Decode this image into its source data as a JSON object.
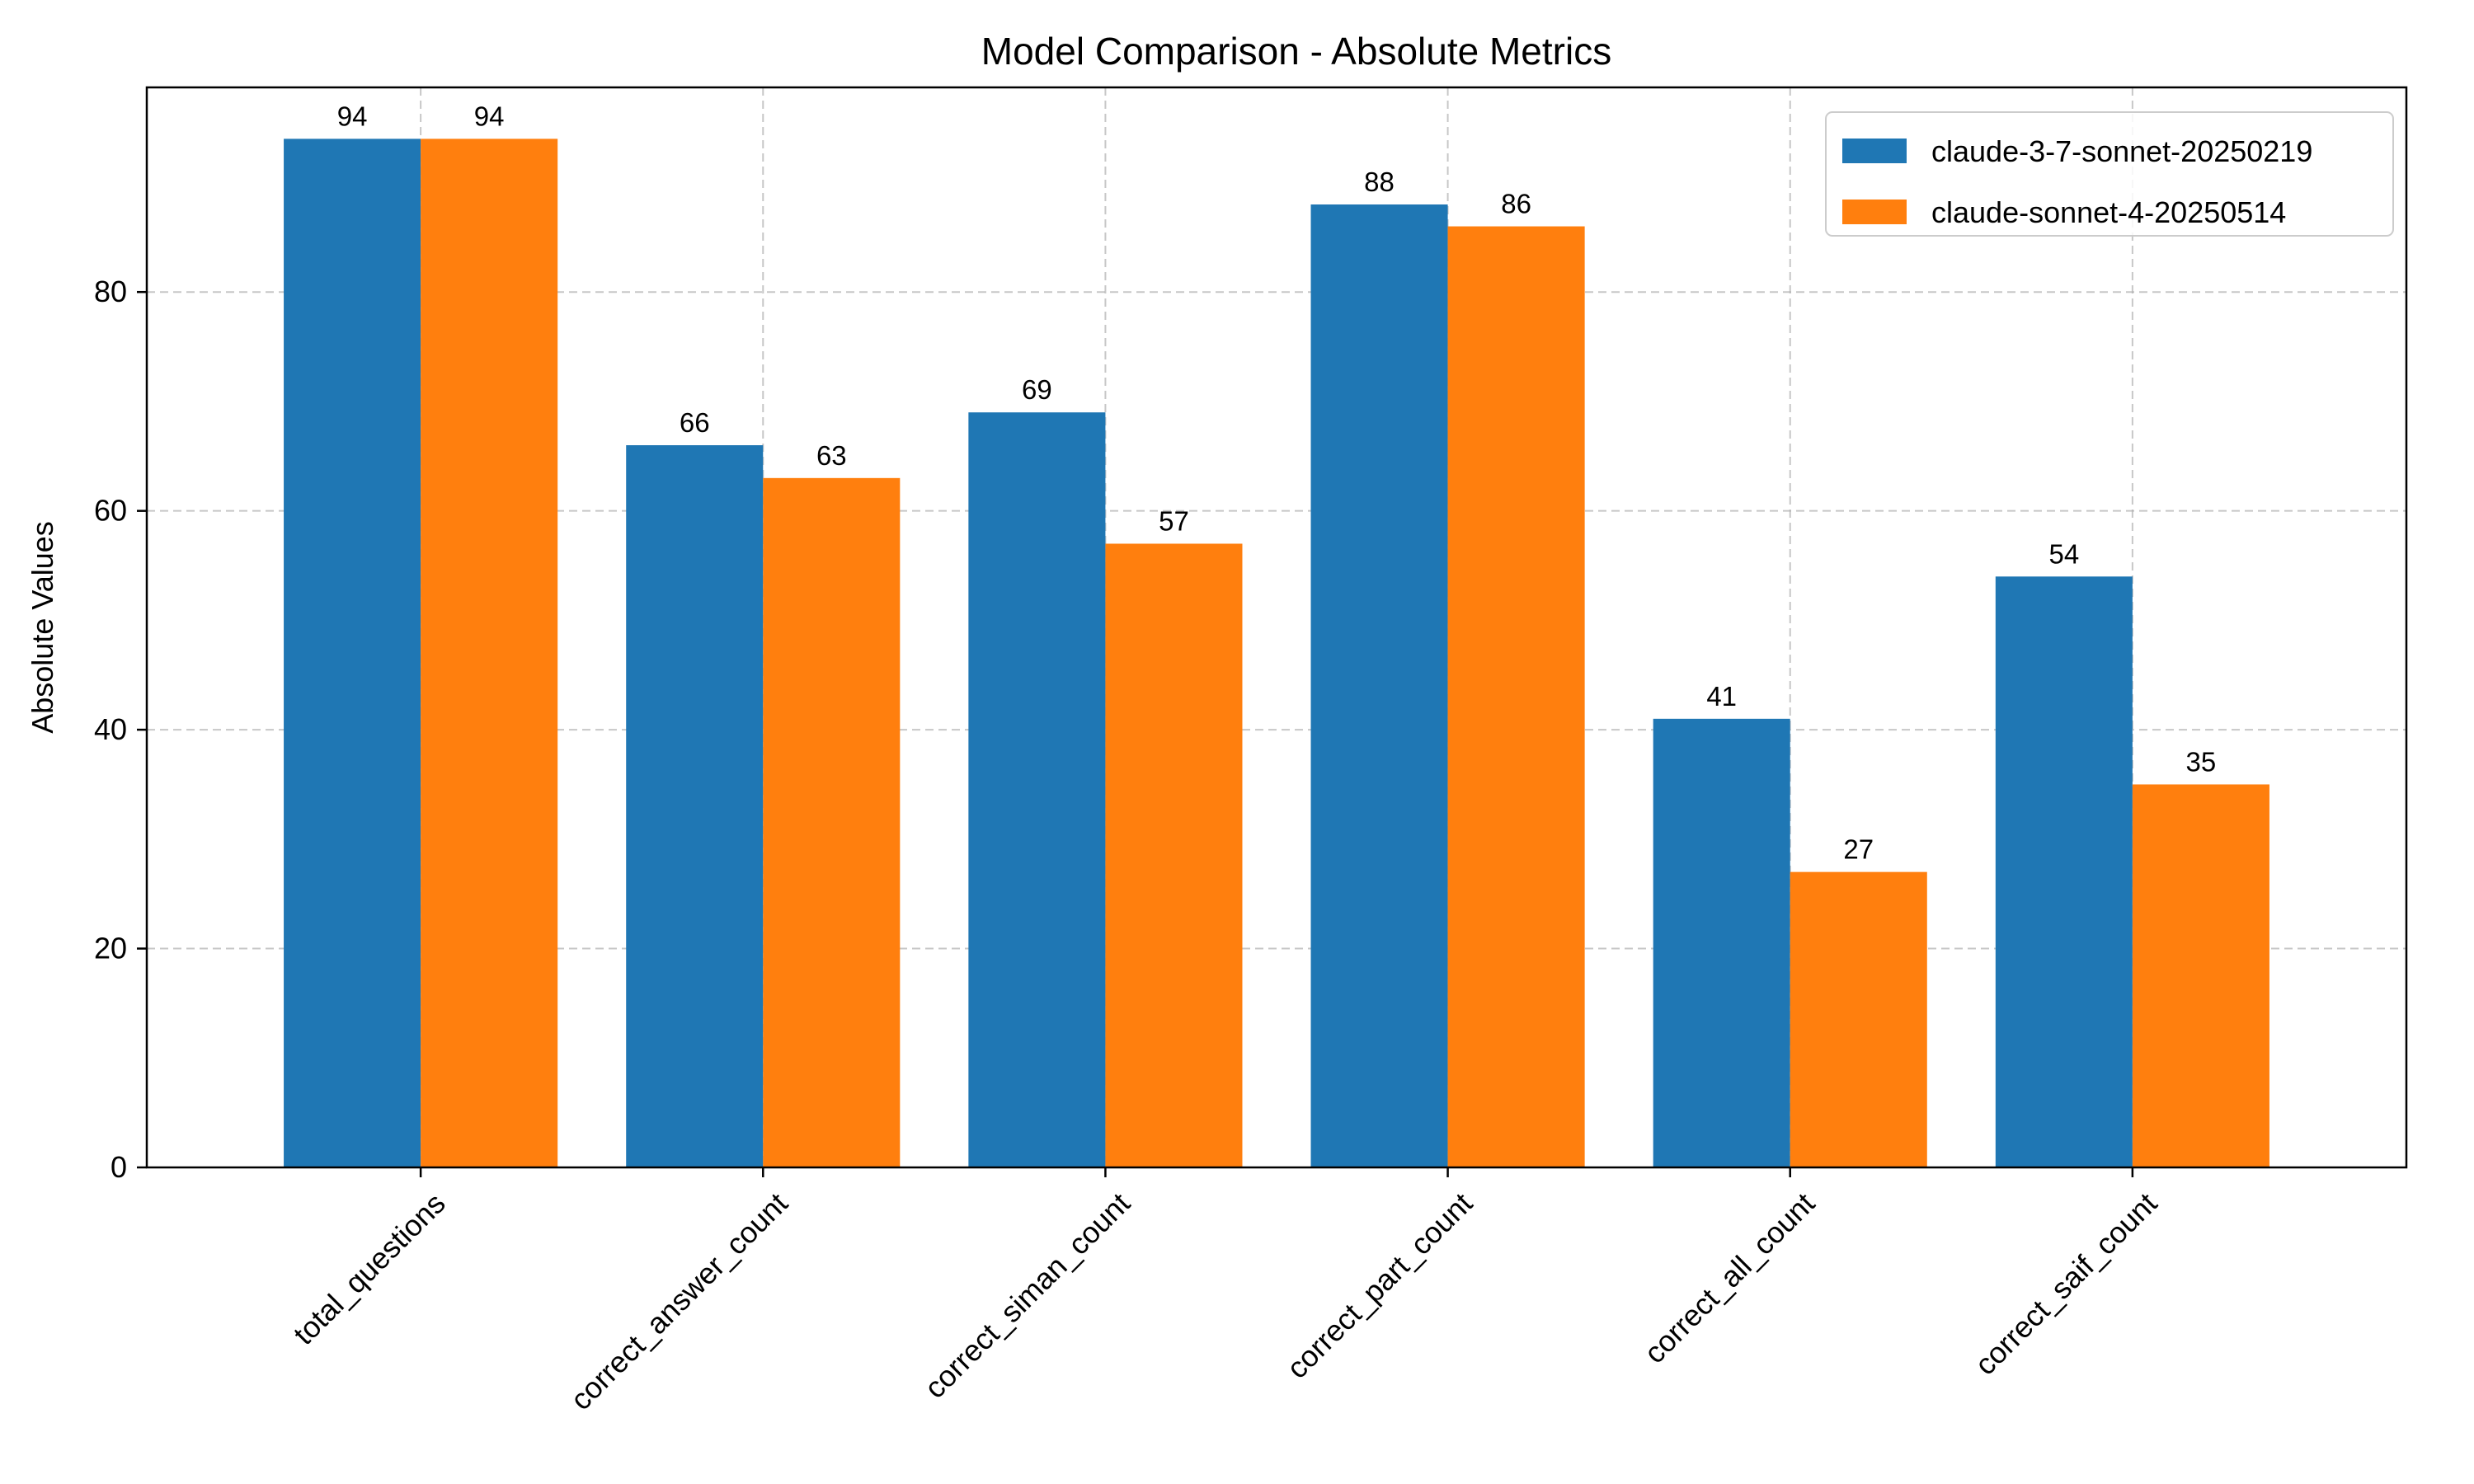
{
  "chart_data": {
    "type": "bar",
    "title": "Model Comparison - Absolute Metrics",
    "xlabel": "",
    "ylabel": "Absolute Values",
    "categories": [
      "total_questions",
      "correct_answer_count",
      "correct_siman_count",
      "correct_part_count",
      "correct_all_count",
      "correct_saif_count"
    ],
    "series": [
      {
        "name": "claude-3-7-sonnet-20250219",
        "color": "#1f77b4",
        "values": [
          94,
          66,
          69,
          88,
          41,
          54
        ]
      },
      {
        "name": "claude-sonnet-4-20250514",
        "color": "#ff7f0e",
        "values": [
          94,
          63,
          57,
          86,
          27,
          35
        ]
      }
    ],
    "ylim": [
      0,
      98.7
    ],
    "yticks": [
      0,
      20,
      40,
      60,
      80
    ],
    "grid": true,
    "legend_position": "top-right",
    "bar_labels": true
  }
}
